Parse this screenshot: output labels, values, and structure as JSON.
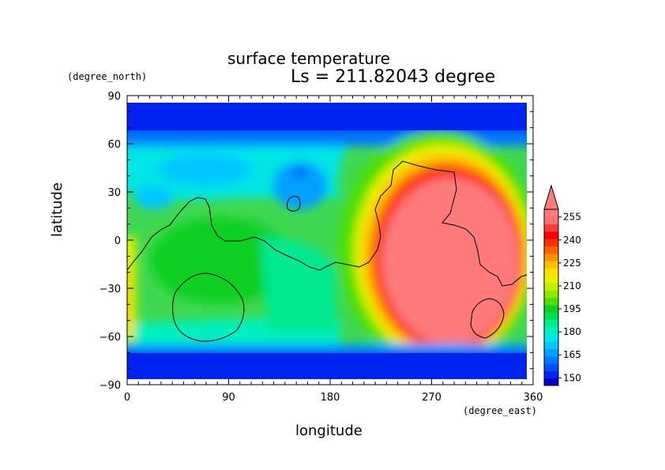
{
  "chart_data": {
    "type": "heatmap",
    "title": "surface temperature",
    "subtitle": "Ls = 211.82043 degree",
    "xlabel": "longitude",
    "ylabel": "latitude",
    "x_unit": "(degree_east)",
    "y_unit": "(degree_north)",
    "xlim": [
      0,
      360
    ],
    "ylim": [
      -90,
      90
    ],
    "x_ticks": [
      "0",
      "90",
      "180",
      "270",
      "360"
    ],
    "x_tick_values": [
      0,
      90,
      180,
      270,
      360
    ],
    "y_ticks": [
      "90",
      "60",
      "30",
      "0",
      "−30",
      "−60",
      "−90"
    ],
    "y_tick_values": [
      90,
      60,
      30,
      0,
      -30,
      -60,
      -90
    ],
    "colorbar": {
      "levels": [
        145,
        150,
        155,
        160,
        165,
        170,
        175,
        180,
        185,
        190,
        195,
        200,
        205,
        210,
        215,
        220,
        225,
        230,
        235,
        240,
        245,
        250,
        255,
        260
      ],
      "labels": [
        "150",
        "165",
        "180",
        "195",
        "210",
        "225",
        "240",
        "255"
      ],
      "label_values": [
        150,
        165,
        180,
        195,
        210,
        225,
        240,
        255
      ],
      "colors": [
        "#0000cc",
        "#0022ee",
        "#0050ff",
        "#0078ff",
        "#00a0ff",
        "#00c8ff",
        "#00e6e6",
        "#00f0c0",
        "#00e890",
        "#00dd50",
        "#10d020",
        "#50e000",
        "#90e800",
        "#c0f000",
        "#e8f000",
        "#ffe000",
        "#ffc000",
        "#ff9000",
        "#ff6000",
        "#ff3000",
        "#ff0000",
        "#ff3a3a",
        "#ff7070",
        "#ff7a7a"
      ],
      "extend": "max"
    },
    "grid": false
  }
}
